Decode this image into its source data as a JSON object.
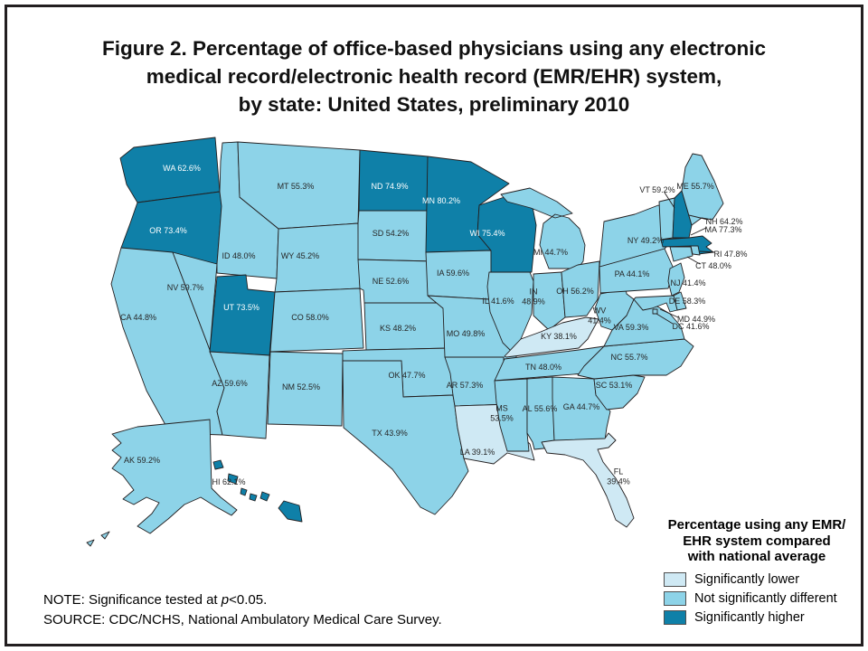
{
  "figure": {
    "title_lines": [
      "Figure 2. Percentage of office-based physicians using any electronic",
      "medical record/electronic health record (EMR/EHR) system,",
      "by state: United States, preliminary 2010"
    ]
  },
  "chart_data": {
    "type": "choropleth",
    "title": "Percentage of office-based physicians using any electronic medical record/electronic health record (EMR/EHR) system, by state: United States, preliminary 2010",
    "unit": "percent",
    "category_meanings": {
      "lower": "Significantly lower",
      "not_different": "Not significantly different",
      "higher": "Significantly higher"
    },
    "states": [
      {
        "id": "WA",
        "value": 62.6,
        "category": "higher",
        "label_lines": [
          "WA 62.6%"
        ]
      },
      {
        "id": "OR",
        "value": 73.4,
        "category": "higher",
        "label_lines": [
          "OR 73.4%"
        ]
      },
      {
        "id": "CA",
        "value": 44.8,
        "category": "not_different",
        "label_lines": [
          "CA 44.8%"
        ]
      },
      {
        "id": "NV",
        "value": 59.7,
        "category": "not_different",
        "label_lines": [
          "NV 59.7%"
        ]
      },
      {
        "id": "ID",
        "value": 48.0,
        "category": "not_different",
        "label_lines": [
          "ID 48.0%"
        ]
      },
      {
        "id": "MT",
        "value": 55.3,
        "category": "not_different",
        "label_lines": [
          "MT 55.3%"
        ]
      },
      {
        "id": "WY",
        "value": 45.2,
        "category": "not_different",
        "label_lines": [
          "WY 45.2%"
        ]
      },
      {
        "id": "UT",
        "value": 73.5,
        "category": "higher",
        "label_lines": [
          "UT 73.5%"
        ]
      },
      {
        "id": "CO",
        "value": 58.0,
        "category": "not_different",
        "label_lines": [
          "CO 58.0%"
        ]
      },
      {
        "id": "AZ",
        "value": 59.6,
        "category": "not_different",
        "label_lines": [
          "AZ 59.6%"
        ]
      },
      {
        "id": "NM",
        "value": 52.5,
        "category": "not_different",
        "label_lines": [
          "NM 52.5%"
        ]
      },
      {
        "id": "ND",
        "value": 74.9,
        "category": "higher",
        "label_lines": [
          "ND 74.9%"
        ]
      },
      {
        "id": "SD",
        "value": 54.2,
        "category": "not_different",
        "label_lines": [
          "SD 54.2%"
        ]
      },
      {
        "id": "NE",
        "value": 52.6,
        "category": "not_different",
        "label_lines": [
          "NE 52.6%"
        ]
      },
      {
        "id": "KS",
        "value": 48.2,
        "category": "not_different",
        "label_lines": [
          "KS 48.2%"
        ]
      },
      {
        "id": "OK",
        "value": 47.7,
        "category": "not_different",
        "label_lines": [
          "OK 47.7%"
        ]
      },
      {
        "id": "TX",
        "value": 43.9,
        "category": "not_different",
        "label_lines": [
          "TX 43.9%"
        ]
      },
      {
        "id": "MN",
        "value": 80.2,
        "category": "higher",
        "label_lines": [
          "MN 80.2%"
        ]
      },
      {
        "id": "IA",
        "value": 59.6,
        "category": "not_different",
        "label_lines": [
          "IA 59.6%"
        ]
      },
      {
        "id": "MO",
        "value": 49.8,
        "category": "not_different",
        "label_lines": [
          "MO 49.8%"
        ]
      },
      {
        "id": "AR",
        "value": 57.3,
        "category": "not_different",
        "label_lines": [
          "AR 57.3%"
        ]
      },
      {
        "id": "LA",
        "value": 39.1,
        "category": "lower",
        "label_lines": [
          "LA 39.1%"
        ]
      },
      {
        "id": "WI",
        "value": 75.4,
        "category": "higher",
        "label_lines": [
          "WI 75.4%"
        ]
      },
      {
        "id": "IL",
        "value": 41.6,
        "category": "not_different",
        "label_lines": [
          "IL 41.6%"
        ]
      },
      {
        "id": "IN",
        "value": 48.9,
        "category": "not_different",
        "label_lines": [
          "IN",
          "48.9%"
        ]
      },
      {
        "id": "MI",
        "value": 44.7,
        "category": "not_different",
        "label_lines": [
          "MI 44.7%"
        ]
      },
      {
        "id": "OH",
        "value": 56.2,
        "category": "not_different",
        "label_lines": [
          "OH 56.2%"
        ]
      },
      {
        "id": "KY",
        "value": 38.1,
        "category": "lower",
        "label_lines": [
          "KY 38.1%"
        ]
      },
      {
        "id": "TN",
        "value": 48.0,
        "category": "not_different",
        "label_lines": [
          "TN 48.0%"
        ]
      },
      {
        "id": "MS",
        "value": 53.5,
        "category": "not_different",
        "label_lines": [
          "MS",
          "53.5%"
        ]
      },
      {
        "id": "AL",
        "value": 55.6,
        "category": "not_different",
        "label_lines": [
          "AL 55.6%"
        ]
      },
      {
        "id": "GA",
        "value": 44.7,
        "category": "not_different",
        "label_lines": [
          "GA 44.7%"
        ]
      },
      {
        "id": "FL",
        "value": 39.4,
        "category": "lower",
        "label_lines": [
          "FL",
          "39.4%"
        ]
      },
      {
        "id": "SC",
        "value": 53.1,
        "category": "not_different",
        "label_lines": [
          "SC 53.1%"
        ]
      },
      {
        "id": "NC",
        "value": 55.7,
        "category": "not_different",
        "label_lines": [
          "NC 55.7%"
        ]
      },
      {
        "id": "VA",
        "value": 59.3,
        "category": "not_different",
        "label_lines": [
          "VA 59.3%"
        ]
      },
      {
        "id": "WV",
        "value": 41.4,
        "category": "not_different",
        "label_lines": [
          "WV",
          "41.4%"
        ]
      },
      {
        "id": "PA",
        "value": 44.1,
        "category": "not_different",
        "label_lines": [
          "PA 44.1%"
        ]
      },
      {
        "id": "NY",
        "value": 49.2,
        "category": "not_different",
        "label_lines": [
          "NY 49.2%"
        ]
      },
      {
        "id": "NJ",
        "value": 41.4,
        "category": "not_different",
        "label_lines": [
          "NJ 41.4%"
        ]
      },
      {
        "id": "DE",
        "value": 58.3,
        "category": "not_different",
        "label_lines": [
          "DE 58.3%"
        ]
      },
      {
        "id": "MD",
        "value": 44.9,
        "category": "not_different",
        "label_lines": [
          "MD 44.9%"
        ]
      },
      {
        "id": "DC",
        "value": 41.6,
        "category": "not_different",
        "label_lines": [
          "DC 41.6%"
        ]
      },
      {
        "id": "VT",
        "value": 59.2,
        "category": "not_different",
        "label_lines": [
          "VT 59.2%"
        ]
      },
      {
        "id": "NH",
        "value": 64.2,
        "category": "higher",
        "label_lines": [
          "NH 64.2%"
        ]
      },
      {
        "id": "ME",
        "value": 55.7,
        "category": "not_different",
        "label_lines": [
          "ME 55.7%"
        ]
      },
      {
        "id": "MA",
        "value": 77.3,
        "category": "higher",
        "label_lines": [
          "MA 77.3%"
        ]
      },
      {
        "id": "RI",
        "value": 47.8,
        "category": "not_different",
        "label_lines": [
          "RI 47.8%"
        ]
      },
      {
        "id": "CT",
        "value": 48.0,
        "category": "not_different",
        "label_lines": [
          "CT 48.0%"
        ]
      },
      {
        "id": "AK",
        "value": 59.2,
        "category": "not_different",
        "label_lines": [
          "AK 59.2%"
        ]
      },
      {
        "id": "HI",
        "value": 62.1,
        "category": "higher",
        "label_lines": [
          "HI 62.1%"
        ]
      }
    ]
  },
  "legend": {
    "title_lines": [
      "Percentage using any EMR/",
      "EHR system compared",
      "with national average"
    ],
    "colors": {
      "lower": "#cfe9f4",
      "not_different": "#8dd3e8",
      "higher": "#0f80a8"
    },
    "items": [
      {
        "key": "lower",
        "label": "Significantly lower"
      },
      {
        "key": "not_different",
        "label": "Not significantly different"
      },
      {
        "key": "higher",
        "label": "Significantly higher"
      }
    ]
  },
  "notes": {
    "note_prefix": "NOTE: Significance tested at ",
    "note_italic": "p",
    "note_suffix": "<0.05.",
    "source": "SOURCE: CDC/NCHS, National Ambulatory Medical Care Survey."
  }
}
